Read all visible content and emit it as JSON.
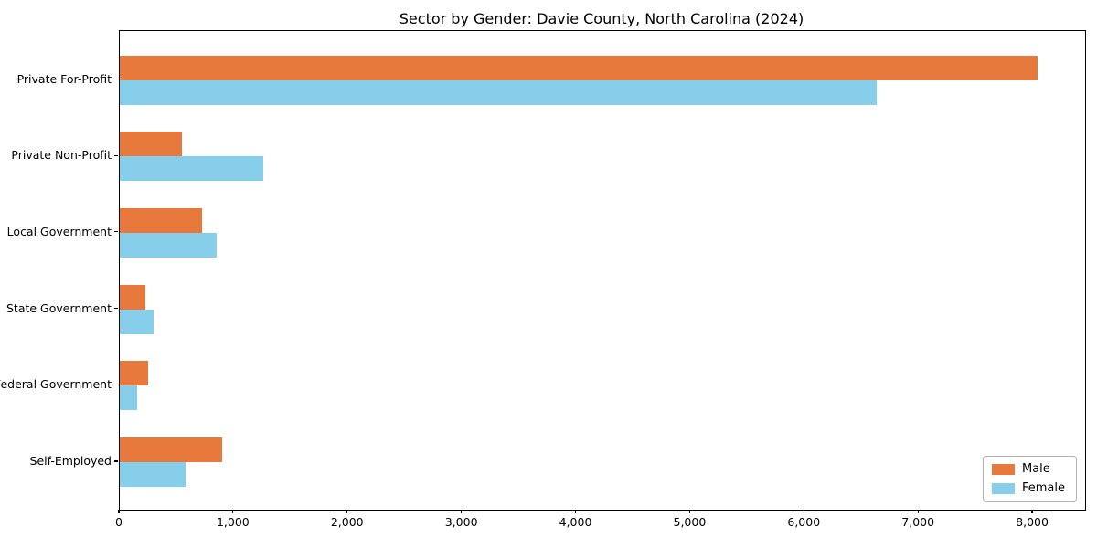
{
  "chart_data": {
    "type": "bar",
    "orientation": "horizontal",
    "title": "Sector by Gender: Davie County, North Carolina (2024)",
    "categories": [
      "Private For-Profit",
      "Private Non-Profit",
      "Local Government",
      "State Government",
      "Federal Government",
      "Self-Employed"
    ],
    "series": [
      {
        "name": "Male",
        "color": "#E8793D",
        "values": [
          8040,
          545,
          720,
          225,
          250,
          895
        ]
      },
      {
        "name": "Female",
        "color": "#87CEEB",
        "values": [
          6630,
          1255,
          850,
          295,
          150,
          575
        ]
      }
    ],
    "xlabel": "",
    "ylabel": "",
    "xlim": [
      0,
      8456
    ],
    "x_ticks": [
      0,
      1000,
      2000,
      3000,
      4000,
      5000,
      6000,
      7000,
      8000
    ],
    "x_tick_labels": [
      "0",
      "1,000",
      "2,000",
      "3,000",
      "4,000",
      "5,000",
      "6,000",
      "7,000",
      "8,000"
    ],
    "grid": false,
    "legend_position": "lower right",
    "legend_entries": [
      "Male",
      "Female"
    ]
  }
}
